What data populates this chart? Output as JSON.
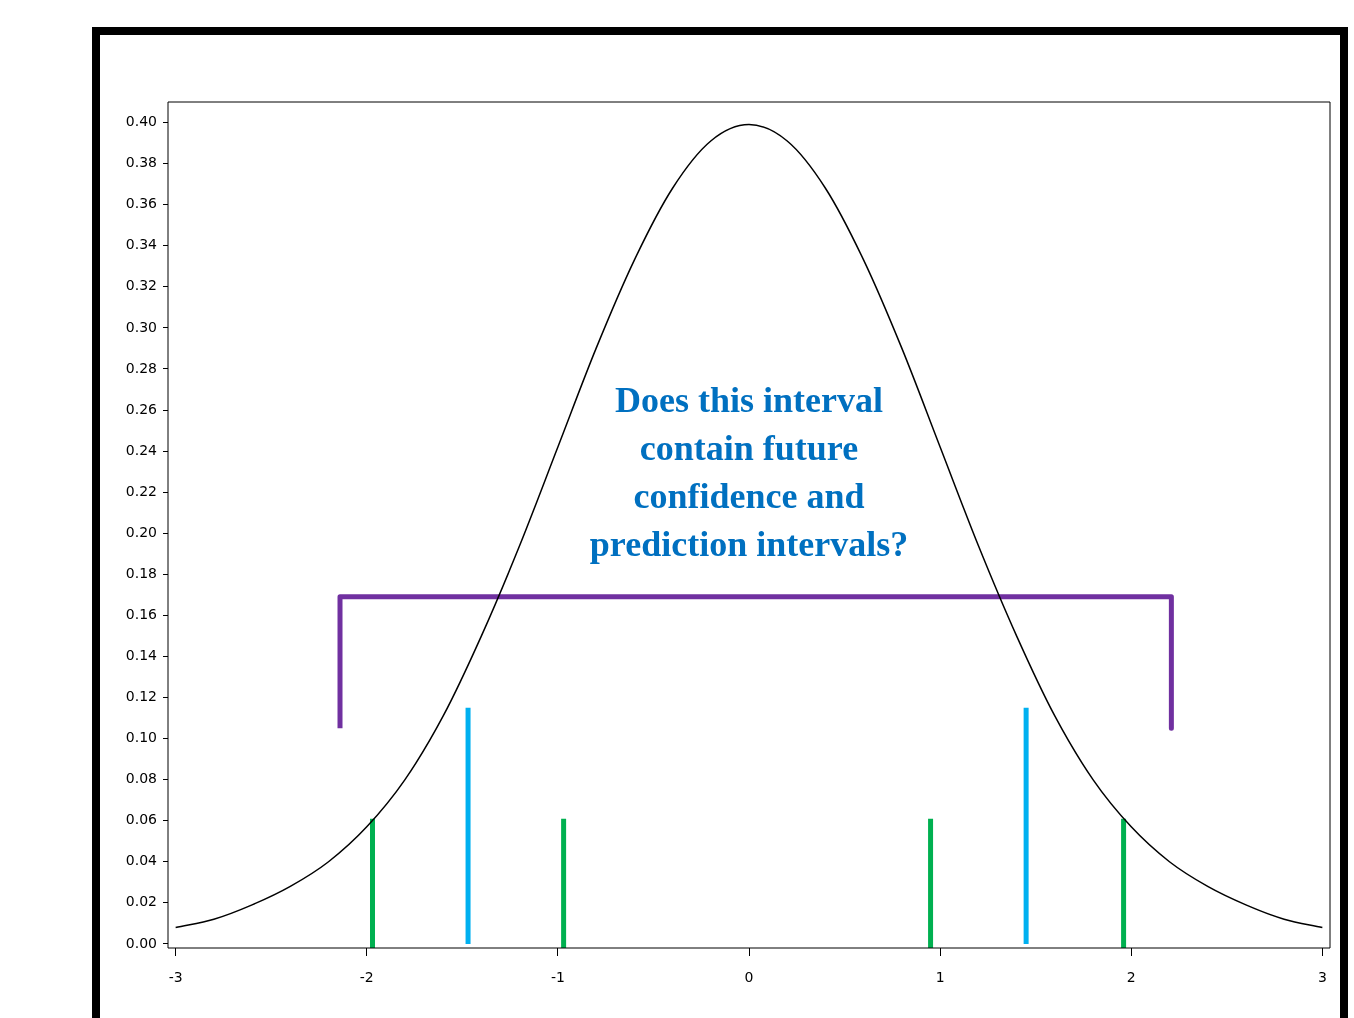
{
  "chart_data": {
    "type": "line",
    "marker": "none",
    "line_style": "solid",
    "legend": false,
    "grid": false,
    "xlim": [
      -3.04,
      3.04
    ],
    "ylim": [
      -0.002,
      0.41
    ],
    "xticks": [
      -3,
      -2,
      -1,
      0,
      1,
      2,
      3
    ],
    "yticks": [
      {
        "value": 0,
        "label": "0.00"
      },
      {
        "value": 0.02,
        "label": "0.02"
      },
      {
        "value": 0.04,
        "label": "0.04"
      },
      {
        "value": 0.06,
        "label": "0.06"
      },
      {
        "value": 0.08,
        "label": "0.08"
      },
      {
        "value": 0.1,
        "label": "0.10"
      },
      {
        "value": 0.12,
        "label": "0.12"
      },
      {
        "value": 0.14,
        "label": "0.14"
      },
      {
        "value": 0.16,
        "label": "0.16"
      },
      {
        "value": 0.18,
        "label": "0.18"
      },
      {
        "value": 0.2,
        "label": "0.20"
      },
      {
        "value": 0.22,
        "label": "0.22"
      },
      {
        "value": 0.24,
        "label": "0.24"
      },
      {
        "value": 0.26,
        "label": "0.26"
      },
      {
        "value": 0.28,
        "label": "0.28"
      },
      {
        "value": 0.3,
        "label": "0.30"
      },
      {
        "value": 0.32,
        "label": "0.32"
      },
      {
        "value": 0.34,
        "label": "0.34"
      },
      {
        "value": 0.36,
        "label": "0.36"
      },
      {
        "value": 0.38,
        "label": "0.38"
      },
      {
        "value": 0.4,
        "label": "0.40"
      }
    ],
    "annotations": [
      "Does this interval contain future confidence and prediction intervals?"
    ],
    "series": [
      {
        "color": "#000000",
        "x": [
          -3,
          -2.8,
          -2.6,
          -2.4,
          -2.2,
          -2,
          -1.8,
          -1.6,
          -1.4,
          -1.2,
          -1,
          -0.8,
          -0.6,
          -0.4,
          -0.2,
          0,
          0.2,
          0.4,
          0.6,
          0.8,
          1,
          1.2,
          1.4,
          1.6,
          1.8,
          2,
          2.2,
          2.4,
          2.6,
          2.8,
          3
        ],
        "values": [
          0.008,
          0.012,
          0.019,
          0.028,
          0.04,
          0.057,
          0.08,
          0.111,
          0.15,
          0.194,
          0.242,
          0.29,
          0.333,
          0.368,
          0.391,
          0.399,
          0.391,
          0.368,
          0.333,
          0.29,
          0.242,
          0.194,
          0.15,
          0.111,
          0.08,
          0.057,
          0.04,
          0.028,
          0.019,
          0.012,
          0.008
        ]
      },
      {
        "color": "#7030a0",
        "x": [
          -2.14,
          -2.14,
          2.21,
          2.21
        ],
        "values": [
          0.105,
          0.169,
          0.169,
          0.105
        ]
      },
      {
        "color": "#00b0f0",
        "x": [
          -1.47,
          -1.47
        ],
        "values": [
          0,
          0.115
        ]
      },
      {
        "color": "#00b0f0",
        "x": [
          1.45,
          1.45
        ],
        "values": [
          0,
          0.115
        ]
      },
      {
        "color": "#00b050",
        "x": [
          -1.97,
          -1.97
        ],
        "values": [
          -0.002,
          0.061
        ]
      },
      {
        "color": "#00b050",
        "x": [
          -0.97,
          -0.97
        ],
        "values": [
          -0.002,
          0.061
        ]
      },
      {
        "color": "#00b050",
        "x": [
          0.95,
          0.95
        ],
        "values": [
          -0.002,
          0.061
        ]
      },
      {
        "color": "#00b050",
        "x": [
          1.96,
          1.96
        ],
        "values": [
          -0.002,
          0.061
        ]
      }
    ]
  }
}
